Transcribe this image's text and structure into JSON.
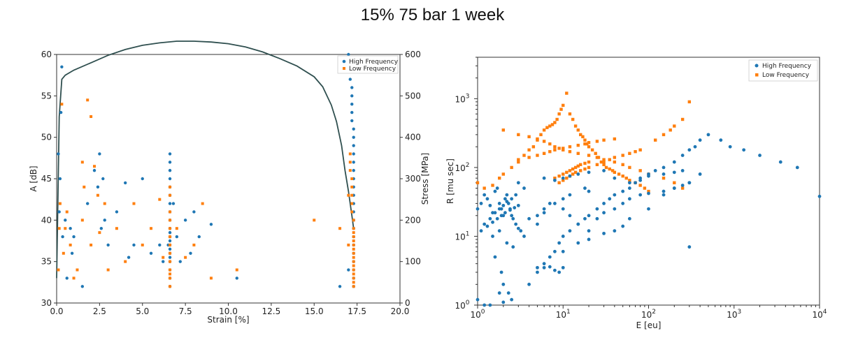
{
  "title": "15% 75 bar 1 week",
  "colors": {
    "blue": "#1f77b4",
    "orange": "#ff7f0e",
    "curve": "#2f4f4f"
  },
  "chart_data": [
    {
      "type": "scatter",
      "title": "",
      "xlabel": "Strain [%]",
      "ylabel": "A [dB]",
      "y2label": "Stress [MPa]",
      "xlim": [
        0,
        20
      ],
      "ylim": [
        30,
        60
      ],
      "y2lim": [
        0,
        600
      ],
      "xticks": [
        0,
        2.5,
        5,
        7.5,
        10,
        12.5,
        15,
        17.5,
        20
      ],
      "xtick_labels": [
        "0.0",
        "2.5",
        "5.0",
        "7.5",
        "10.0",
        "12.5",
        "15.0",
        "17.5",
        "20.0"
      ],
      "yticks": [
        30,
        35,
        40,
        45,
        50,
        55,
        60
      ],
      "y2ticks": [
        0,
        100,
        200,
        300,
        400,
        500,
        600
      ],
      "legend_position": "top-right",
      "series": [
        {
          "name": "High Frequency",
          "marker": "circle",
          "color": "#1f77b4",
          "x": [
            0.1,
            0.2,
            0.25,
            0.3,
            0.35,
            0.15,
            0.5,
            0.6,
            0.8,
            0.9,
            1.0,
            1.5,
            1.8,
            2.2,
            2.4,
            2.5,
            2.6,
            2.7,
            2.8,
            3.0,
            3.5,
            4.0,
            4.2,
            4.5,
            5.0,
            5.5,
            6.0,
            6.2,
            6.5,
            6.6,
            6.6,
            6.6,
            6.6,
            6.6,
            6.6,
            6.6,
            6.6,
            6.6,
            6.6,
            6.6,
            6.6,
            6.6,
            6.6,
            6.6,
            6.6,
            6.6,
            6.6,
            6.6,
            6.6,
            6.6,
            6.8,
            7.0,
            7.2,
            7.5,
            7.8,
            8.0,
            8.3,
            9.0,
            10.5,
            16.5,
            17.0,
            17.0,
            17.1,
            17.1,
            17.1,
            17.2,
            17.2,
            17.2,
            17.2,
            17.2,
            17.3,
            17.3,
            17.3,
            17.3,
            17.3,
            17.3,
            17.3,
            17.3,
            17.3,
            17.3,
            17.3,
            17.3,
            17.3,
            17.3,
            17.3,
            17.3,
            17.3,
            17.3,
            17.3,
            17.3
          ],
          "y": [
            48,
            45,
            53,
            58.5,
            38,
            41,
            40,
            33,
            39,
            36,
            38,
            32,
            42,
            46,
            44,
            48,
            39,
            45,
            40,
            37,
            41,
            44.5,
            35.5,
            37,
            45,
            36,
            37,
            35,
            37,
            48,
            47,
            46,
            45,
            44,
            43,
            42,
            41,
            40,
            39,
            38.5,
            38,
            37.5,
            37,
            36.5,
            36,
            35.5,
            35,
            34,
            33,
            32,
            42,
            38,
            35,
            40,
            36,
            41,
            38,
            39.5,
            33,
            32,
            34,
            60,
            59,
            58,
            57,
            56,
            55,
            54,
            53,
            52,
            51,
            50,
            49,
            47,
            46,
            44,
            43,
            41,
            39,
            38,
            37,
            36,
            35,
            34,
            33,
            32,
            40,
            48,
            45,
            42
          ]
        },
        {
          "name": "Low Frequency",
          "marker": "square",
          "color": "#ff7f0e",
          "x": [
            0.1,
            0.15,
            0.2,
            0.3,
            0.4,
            0.5,
            0.6,
            0.8,
            1.0,
            1.2,
            1.5,
            1.5,
            1.6,
            1.8,
            2.0,
            2.0,
            2.2,
            2.4,
            2.5,
            2.8,
            3.0,
            3.5,
            4.0,
            4.5,
            5.0,
            5.5,
            6.0,
            6.2,
            6.6,
            6.6,
            6.6,
            6.6,
            6.6,
            6.6,
            6.6,
            6.6,
            6.6,
            6.6,
            6.6,
            6.6,
            6.6,
            7.0,
            7.5,
            8.0,
            8.5,
            9.0,
            10.5,
            15.0,
            16.5,
            17.0,
            17.0,
            17.1,
            17.1,
            17.1,
            17.2,
            17.2,
            17.2,
            17.2,
            17.2,
            17.3,
            17.3,
            17.3,
            17.3,
            17.3,
            17.3,
            17.3,
            17.3,
            17.3,
            17.3,
            17.3,
            17.3,
            17.3,
            17.3,
            17.3,
            17.3
          ],
          "y": [
            34,
            39,
            42,
            54,
            36,
            39,
            41,
            37,
            33,
            34,
            40,
            47,
            44,
            54.5,
            52.5,
            37,
            46.5,
            43,
            38.5,
            42,
            34,
            39,
            35,
            42,
            37,
            39,
            42.5,
            35.5,
            44,
            43,
            41,
            40,
            39,
            38,
            37,
            36,
            35,
            34,
            33.5,
            33,
            32,
            39,
            35.5,
            37,
            42,
            33,
            34,
            40,
            39,
            37,
            43,
            48,
            47,
            46,
            45,
            44,
            43,
            42,
            41,
            40,
            39,
            38.5,
            38,
            37.5,
            37,
            36.5,
            36,
            35.5,
            35,
            34.5,
            34,
            33.5,
            33,
            32.5,
            32
          ]
        },
        {
          "name": "Stress",
          "type": "line",
          "axis": "y2",
          "color": "#2f4f4f",
          "x": [
            0,
            0.15,
            0.3,
            0.5,
            1,
            2,
            3,
            4,
            5,
            6,
            7,
            7.5,
            8,
            9,
            10,
            11,
            12,
            13,
            14,
            15,
            15.5,
            16,
            16.3,
            16.6,
            16.8,
            17.0,
            17.2,
            17.3
          ],
          "y": [
            60,
            450,
            540,
            550,
            562,
            580,
            598,
            612,
            622,
            628,
            632,
            632,
            632,
            630,
            626,
            618,
            606,
            590,
            572,
            546,
            522,
            478,
            438,
            380,
            320,
            270,
            210,
            180
          ]
        }
      ]
    },
    {
      "type": "scatter",
      "title": "",
      "xlabel": "E [eu]",
      "ylabel": "R [mu sec]",
      "xscale": "log",
      "yscale": "log",
      "xlim": [
        1,
        10000
      ],
      "ylim": [
        1,
        4000
      ],
      "xtick_labels": [
        "10^0",
        "10^1",
        "10^2",
        "10^3",
        "10^4"
      ],
      "ytick_labels": [
        "10^0",
        "10^1",
        "10^2",
        "10^3"
      ],
      "legend_position": "top-right",
      "series": [
        {
          "name": "High Frequency",
          "marker": "circle",
          "color": "#1f77b4",
          "x": [
            1,
            1.1,
            1.2,
            1.3,
            1.4,
            1.5,
            1.6,
            1.7,
            1.8,
            1.9,
            2.0,
            2.1,
            2.2,
            2.3,
            2.4,
            2.5,
            2.6,
            2.8,
            3.0,
            3.2,
            3.5,
            1.2,
            1.4,
            1.6,
            1.8,
            2.0,
            2.2,
            2.5,
            2.8,
            1.1,
            1.3,
            1.5,
            1.7,
            1.9,
            2.1,
            2.4,
            2.7,
            3.0,
            1.5,
            1.8,
            2.2,
            2.6,
            1.6,
            1.9,
            2.0,
            2.3,
            1.0,
            1.2,
            1.4,
            2.0,
            2.5,
            1.8,
            4,
            5,
            6,
            7,
            8,
            9,
            10,
            12,
            15,
            18,
            20,
            25,
            30,
            35,
            40,
            50,
            60,
            70,
            80,
            100,
            120,
            150,
            200,
            250,
            300,
            350,
            400,
            500,
            700,
            900,
            1300,
            2000,
            3500,
            5500,
            10000,
            5,
            6,
            7,
            8,
            9,
            10,
            5,
            6,
            8,
            10,
            12,
            18,
            20,
            4,
            5,
            6,
            3,
            3.5,
            7,
            10,
            12,
            15,
            20,
            25,
            30,
            40,
            50,
            60,
            80,
            100,
            150,
            200,
            250,
            300,
            6,
            8,
            10,
            12,
            15,
            20,
            30,
            40,
            60,
            80,
            100,
            150,
            200,
            250,
            300,
            10,
            15,
            20,
            30,
            40,
            50,
            60,
            100,
            150,
            200,
            300,
            400
          ],
          "y": [
            25,
            30,
            40,
            35,
            28,
            22,
            45,
            50,
            30,
            25,
            20,
            35,
            40,
            30,
            25,
            20,
            18,
            15,
            13,
            12,
            10,
            15,
            18,
            22,
            25,
            28,
            32,
            35,
            40,
            12,
            14,
            16,
            18,
            20,
            22,
            24,
            26,
            28,
            10,
            12,
            8,
            7,
            5,
            3,
            2,
            1.5,
            1.2,
            1,
            1,
            1.1,
            1.2,
            1.5,
            2,
            3,
            4,
            5,
            6,
            8,
            10,
            12,
            15,
            18,
            20,
            25,
            30,
            35,
            40,
            45,
            50,
            60,
            70,
            80,
            90,
            100,
            120,
            150,
            180,
            200,
            250,
            300,
            250,
            200,
            180,
            150,
            120,
            100,
            38,
            3.5,
            3.5,
            3.6,
            3.2,
            3,
            3.5,
            20,
            25,
            30,
            35,
            40,
            50,
            45,
            18,
            15,
            22,
            60,
            50,
            30,
            25,
            20,
            15,
            12,
            18,
            22,
            25,
            30,
            35,
            40,
            42,
            45,
            50,
            55,
            60,
            70,
            65,
            70,
            75,
            80,
            85,
            90,
            70,
            60,
            65,
            75,
            80,
            85,
            90,
            7,
            6,
            8,
            9,
            11,
            12,
            14,
            18,
            25,
            40,
            50,
            60,
            80
          ]
        },
        {
          "name": "Low Frequency",
          "marker": "square",
          "color": "#ff7f0e",
          "x": [
            1,
            1.2,
            1.5,
            1.8,
            2.0,
            2.5,
            3.0,
            3.5,
            4,
            4.5,
            5,
            5.5,
            6,
            6.5,
            7,
            7.5,
            8,
            8.5,
            9,
            9.5,
            10,
            11,
            12,
            13,
            14,
            15,
            16,
            17,
            18,
            19,
            20,
            22,
            24,
            26,
            28,
            30,
            32,
            35,
            38,
            40,
            45,
            50,
            55,
            60,
            70,
            80,
            90,
            100,
            120,
            150,
            180,
            200,
            250,
            300,
            8,
            9,
            10,
            11,
            12,
            13,
            14,
            15,
            16,
            18,
            20,
            9,
            10,
            11,
            12,
            13,
            14,
            16,
            18,
            20,
            25,
            30,
            35,
            40,
            50,
            60,
            70,
            80,
            2,
            3,
            4,
            5,
            6,
            7,
            8,
            9,
            10,
            12,
            15,
            20,
            25,
            30,
            40,
            50,
            60,
            80,
            100,
            150,
            200,
            250,
            3,
            4,
            5,
            6,
            7,
            8,
            10,
            12,
            15,
            18,
            20,
            25,
            30,
            40
          ],
          "y": [
            60,
            50,
            55,
            70,
            80,
            100,
            120,
            150,
            180,
            200,
            250,
            300,
            350,
            380,
            400,
            420,
            450,
            500,
            600,
            700,
            800,
            1200,
            600,
            500,
            400,
            350,
            300,
            280,
            250,
            220,
            200,
            180,
            160,
            140,
            120,
            110,
            100,
            95,
            90,
            85,
            80,
            75,
            70,
            65,
            60,
            55,
            50,
            45,
            250,
            300,
            350,
            400,
            500,
            900,
            70,
            75,
            80,
            85,
            90,
            95,
            100,
            105,
            110,
            115,
            120,
            60,
            65,
            70,
            75,
            80,
            85,
            90,
            95,
            100,
            110,
            120,
            130,
            140,
            150,
            160,
            170,
            180,
            350,
            300,
            280,
            260,
            240,
            220,
            200,
            190,
            180,
            170,
            160,
            150,
            140,
            130,
            120,
            110,
            100,
            90,
            80,
            70,
            60,
            50,
            130,
            140,
            150,
            160,
            170,
            180,
            190,
            200,
            210,
            220,
            230,
            240,
            250,
            260
          ]
        }
      ]
    }
  ]
}
